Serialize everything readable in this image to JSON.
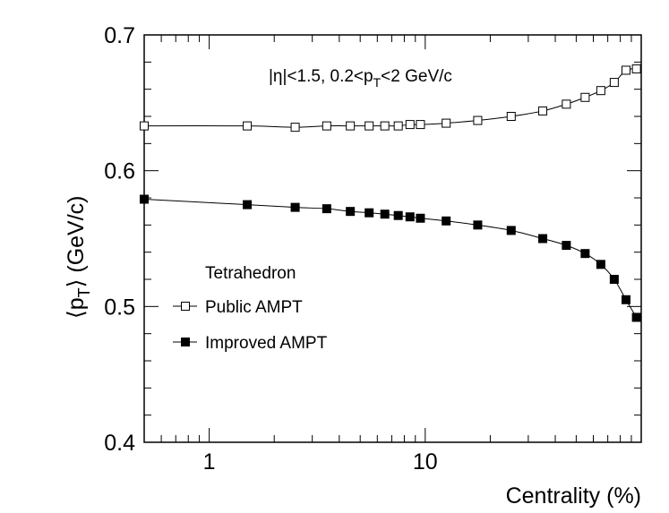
{
  "chart_data": {
    "type": "line",
    "xscale": "log",
    "xlim": [
      0.5,
      100
    ],
    "ylim": [
      0.4,
      0.7
    ],
    "xlabel": "Centrality (%)",
    "ylabel": "⟨pT⟩ (GeV/c)",
    "ylabel_parts": {
      "open": "⟨p",
      "sub": "T",
      "close": "⟩ (GeV/c)"
    },
    "x_ticks": [
      1,
      10
    ],
    "x_tick_labels": [
      "1",
      "10"
    ],
    "y_ticks": [
      0.4,
      0.5,
      0.6,
      0.7
    ],
    "y_tick_labels": [
      "0.4",
      "0.5",
      "0.6",
      "0.7"
    ],
    "annotation": "|η|<1.5, 0.2<pT<2 GeV/c",
    "annotation_parts": {
      "a": "|η|<1.5, 0.2<p",
      "sub": "T",
      "b": "<2 GeV/c"
    },
    "legend": {
      "title": "Tetrahedron",
      "entries": [
        "Public AMPT",
        "Improved AMPT"
      ]
    },
    "series": [
      {
        "name": "Public AMPT",
        "marker": "open-square",
        "x": [
          0.5,
          1.5,
          2.5,
          3.5,
          4.5,
          5.5,
          6.5,
          7.5,
          8.5,
          9.5,
          12.5,
          17.5,
          25,
          35,
          45,
          55,
          65,
          75,
          85,
          95
        ],
        "y": [
          0.633,
          0.633,
          0.632,
          0.633,
          0.633,
          0.633,
          0.633,
          0.633,
          0.634,
          0.634,
          0.635,
          0.637,
          0.64,
          0.644,
          0.649,
          0.654,
          0.659,
          0.665,
          0.674,
          0.675
        ]
      },
      {
        "name": "Improved AMPT",
        "marker": "filled-square",
        "x": [
          0.5,
          1.5,
          2.5,
          3.5,
          4.5,
          5.5,
          6.5,
          7.5,
          8.5,
          9.5,
          12.5,
          17.5,
          25,
          35,
          45,
          55,
          65,
          75,
          85,
          95
        ],
        "y": [
          0.579,
          0.575,
          0.573,
          0.572,
          0.57,
          0.569,
          0.568,
          0.567,
          0.566,
          0.565,
          0.563,
          0.56,
          0.556,
          0.55,
          0.545,
          0.539,
          0.531,
          0.52,
          0.505,
          0.492
        ]
      }
    ]
  }
}
